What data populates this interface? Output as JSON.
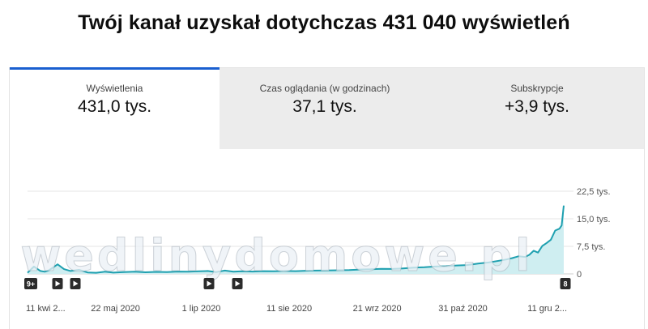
{
  "headline": "Twój kanał uzyskał dotychczas 431 040 wyświetleń",
  "tabs": [
    {
      "label": "Wyświetlenia",
      "value": "431,0 tys.",
      "active": true
    },
    {
      "label": "Czas oglądania (w godzinach)",
      "value": "37,1 tys.",
      "active": false
    },
    {
      "label": "Subskrypcje",
      "value": "+3,9 tys.",
      "active": false
    }
  ],
  "watermark": "wedlinydomowe.pl",
  "markers": [
    {
      "label": "9+",
      "icon": "count-badge"
    },
    {
      "label": "",
      "icon": "play-icon"
    },
    {
      "label": "",
      "icon": "play-icon"
    },
    {
      "label": "",
      "icon": "play-icon"
    },
    {
      "label": "",
      "icon": "play-icon"
    },
    {
      "label": "8",
      "icon": "count-badge"
    }
  ],
  "colors": {
    "line": "#1fa0b0",
    "fill": "#cfeef1",
    "accent": "#1a5fd0",
    "grid": "#e6e6e6"
  },
  "chart_data": {
    "type": "area",
    "ytick_labels": [
      "0",
      "7,5 tys.",
      "15,0 tys.",
      "22,5 tys."
    ],
    "ytick_values": [
      0,
      7500,
      15000,
      22500
    ],
    "ylim": [
      0,
      22500
    ],
    "xtick_labels": [
      "11 kwi 2...",
      "22 maj 2020",
      "1 lip 2020",
      "11 sie 2020",
      "21 wrz 2020",
      "31 paź 2020",
      "11 gru 2..."
    ],
    "xtick_days": [
      0,
      41,
      81,
      122,
      163,
      203,
      244
    ],
    "x_days": [
      0,
      3,
      6,
      8,
      10,
      14,
      17,
      20,
      24,
      28,
      32,
      36,
      40,
      45,
      50,
      55,
      60,
      65,
      70,
      75,
      80,
      84,
      88,
      92,
      96,
      100,
      105,
      110,
      115,
      120,
      125,
      130,
      135,
      140,
      145,
      150,
      155,
      160,
      165,
      170,
      175,
      180,
      185,
      190,
      195,
      200,
      205,
      210,
      215,
      220,
      223,
      226,
      229,
      232,
      234,
      236,
      238,
      240,
      242,
      244,
      246,
      248,
      249,
      250
    ],
    "values": [
      300,
      2000,
      800,
      600,
      1000,
      2600,
      1300,
      800,
      1100,
      400,
      300,
      600,
      350,
      500,
      600,
      450,
      550,
      500,
      650,
      600,
      700,
      800,
      500,
      900,
      600,
      700,
      650,
      750,
      700,
      800,
      750,
      850,
      900,
      950,
      1000,
      1050,
      1200,
      1250,
      1400,
      1350,
      1500,
      1700,
      1800,
      2000,
      2100,
      2300,
      2400,
      2800,
      3100,
      3600,
      3900,
      4300,
      4800,
      4600,
      5200,
      6300,
      5800,
      7600,
      8400,
      9300,
      11800,
      12300,
      13200,
      18600
    ]
  }
}
